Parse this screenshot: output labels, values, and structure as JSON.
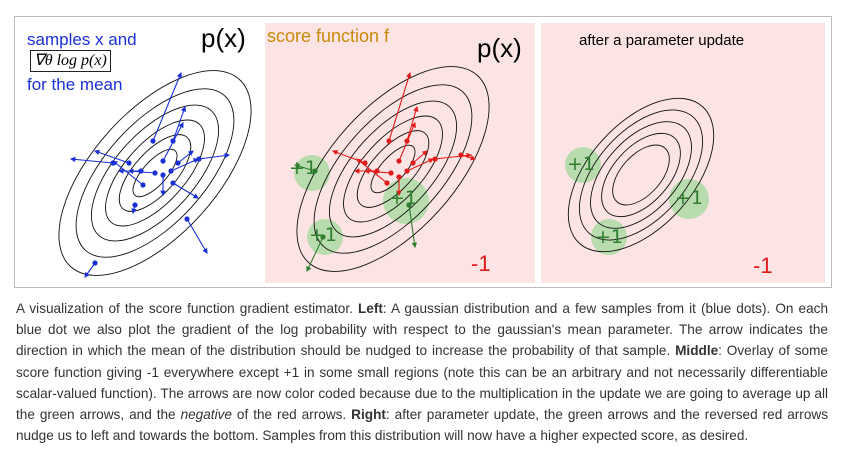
{
  "figure": {
    "left_panel": {
      "label_line1": "samples x and",
      "gradient_expression": "∇θ log p(x)",
      "label_line3": "for the mean",
      "density_label": "p(x)"
    },
    "middle_panel": {
      "score_label": "score function f",
      "density_label": "p(x)",
      "plus_region_1": "+1",
      "plus_region_2": "+1",
      "plus_region_3": "+1",
      "minus_label": "-1"
    },
    "right_panel": {
      "title": "after a parameter update",
      "plus_region_1": "+1",
      "plus_region_2": "+1",
      "plus_region_3": "+1",
      "minus_label": "-1"
    },
    "colors": {
      "blue": "#1a2fd6",
      "red": "#e01b1b",
      "green": "#2f7d2f",
      "green_region": "#b9dcae",
      "pink_background": "#fde4e4",
      "orange_text": "#c98a0a"
    }
  },
  "caption": {
    "part1": "A visualization of the score function gradient estimator. ",
    "left_heading": "Left",
    "part2": ": A gaussian distribution and a few samples from it (blue dots). On each blue dot we also plot the gradient of the log probability with respect to the gaussian's mean parameter. The arrow indicates the direction in which the mean of the distribution should be nudged to increase the probability of that sample. ",
    "middle_heading": "Middle",
    "part3": ": Overlay of some score function giving -1 everywhere except +1 in some small regions (note this can be an arbitrary and not necessarily differentiable scalar-valued function). The arrows are now color coded because due to the multiplication in the update we are going to average up all the green arrows, and the ",
    "negative_word": "negative",
    "part4": " of the red arrows. ",
    "right_heading": "Right",
    "part5": ": after parameter update, the green arrows and the reversed red arrows nudge us to left and towards the bottom. Samples from this distribution will now have a higher expected score, as desired."
  }
}
